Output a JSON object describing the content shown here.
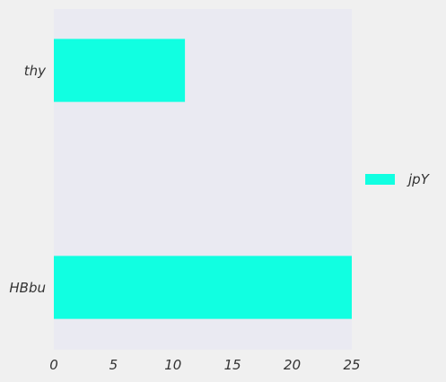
{
  "chart_data": {
    "type": "bar",
    "orientation": "horizontal",
    "categories": [
      "thy",
      "HBbu"
    ],
    "series": [
      {
        "name": "jpY",
        "values": [
          11,
          25
        ]
      }
    ],
    "xlim": [
      0,
      25
    ],
    "xticks": [
      "0",
      "5",
      "10",
      "15",
      "20",
      "25"
    ],
    "grid": false,
    "legend_position": "right",
    "colors": {
      "bar": "#11ffe1",
      "plot_background": "#eaeaf2",
      "figure_background": "#f0f0f0",
      "text": "#333333"
    }
  }
}
